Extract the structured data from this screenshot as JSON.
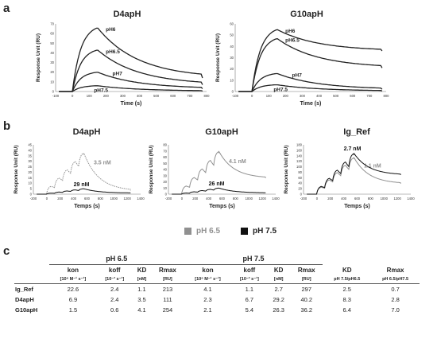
{
  "panel_labels": {
    "a": "a",
    "b": "b",
    "c": "c"
  },
  "legend": {
    "items": [
      {
        "label": "pH 6.5",
        "color": "#909090"
      },
      {
        "label": "pH 7.5",
        "color": "#111111"
      }
    ]
  },
  "chart_data": [
    {
      "id": "a1",
      "type": "line",
      "title": "D4apH",
      "xlabel": "Time (s)",
      "ylabel": "Response Unit (RU)",
      "xlim": [
        -100,
        800
      ],
      "ylim": [
        0,
        70
      ],
      "xticks": [
        -100,
        0,
        100,
        200,
        300,
        400,
        500,
        600,
        700,
        800
      ],
      "yticks": [
        0,
        10,
        20,
        30,
        40,
        50,
        60,
        70
      ],
      "series": [
        {
          "name": "pH6",
          "peak": 66,
          "end": 14
        },
        {
          "name": "pH6.5",
          "peak": 43,
          "end": 7
        },
        {
          "name": "pH7",
          "peak": 20,
          "end": 3
        },
        {
          "name": "pH7.5",
          "peak": 6,
          "end": 0.5
        }
      ]
    },
    {
      "id": "a2",
      "type": "line",
      "title": "G10apH",
      "xlabel": "Time (s)",
      "ylabel": "Response Unit (RU)",
      "xlim": [
        -100,
        800
      ],
      "ylim": [
        0,
        60
      ],
      "xticks": [
        -100,
        0,
        100,
        200,
        300,
        400,
        500,
        600,
        700,
        800
      ],
      "yticks": [
        0,
        10,
        20,
        30,
        40,
        50,
        60
      ],
      "series": [
        {
          "name": "pH6",
          "peak": 55,
          "end": 36
        },
        {
          "name": "pH6.5",
          "peak": 47,
          "end": 21
        },
        {
          "name": "pH7",
          "peak": 16,
          "end": 2
        },
        {
          "name": "pH7.5",
          "peak": 6,
          "end": 0.5
        }
      ]
    },
    {
      "id": "b1",
      "type": "line",
      "title": "D4apH",
      "xlabel": "Temps (s)",
      "ylabel": "Response Unit (RU)",
      "xlim": [
        -200,
        1400
      ],
      "ylim": [
        0,
        45
      ],
      "xticks": [
        -200,
        0,
        200,
        400,
        600,
        800,
        1000,
        1200,
        1400
      ],
      "yticks": [
        0,
        5,
        10,
        15,
        20,
        25,
        30,
        35,
        40,
        45
      ],
      "series": [
        {
          "name": "pH 6.5",
          "color": "#909090",
          "peak": 38,
          "end": 3,
          "label": "3.5 nM"
        },
        {
          "name": "pH 7.5",
          "color": "#111111",
          "peak": 5,
          "end": 1,
          "label": "29 nM"
        }
      ]
    },
    {
      "id": "b2",
      "type": "line",
      "title": "G10apH",
      "xlabel": "Temps (s)",
      "ylabel": "Response Unit (RU)",
      "xlim": [
        -200,
        1400
      ],
      "ylim": [
        0,
        80
      ],
      "xticks": [
        -200,
        0,
        200,
        400,
        600,
        800,
        1000,
        1200,
        1400
      ],
      "yticks": [
        0,
        10,
        20,
        30,
        40,
        50,
        60,
        70,
        80
      ],
      "series": [
        {
          "name": "pH 6.5",
          "color": "#909090",
          "peak": 70,
          "end": 26,
          "label": "4.1 nM"
        },
        {
          "name": "pH 7.5",
          "color": "#111111",
          "peak": 10,
          "end": 2,
          "label": "26 nM"
        }
      ]
    },
    {
      "id": "b3",
      "type": "line",
      "title": "Ig_Ref",
      "xlabel": "Temps (s)",
      "ylabel": "Response Unit (RU)",
      "xlim": [
        -200,
        1400
      ],
      "ylim": [
        0,
        180
      ],
      "xticks": [
        -200,
        0,
        200,
        400,
        600,
        800,
        1000,
        1200,
        1400
      ],
      "yticks": [
        0,
        20,
        40,
        60,
        80,
        100,
        120,
        140,
        160,
        180
      ],
      "series": [
        {
          "name": "pH 6.5",
          "color": "#909090",
          "peak": 135,
          "end": 38,
          "label": "1.1 nM"
        },
        {
          "name": "pH 7.5",
          "color": "#111111",
          "peak": 150,
          "end": 70,
          "label": "2.7 nM"
        }
      ]
    }
  ],
  "table": {
    "group_65": "pH 6.5",
    "group_75": "pH 7.5",
    "headers": [
      "kon",
      "koff",
      "KD",
      "Rmax",
      "kon",
      "koff",
      "KD",
      "Rmax",
      "KD",
      "Rmax"
    ],
    "units": [
      "[10⁶ M⁻¹ s⁻¹]",
      "[10⁻³ s⁻¹]",
      "[nM]",
      "[RU]",
      "[10⁶ M⁻¹ s⁻¹]",
      "[10⁻³ s⁻¹]",
      "[nM]",
      "[RU]",
      "pH 7.5/pH6.5",
      "pH 6.5/pH7.5"
    ],
    "rows": [
      {
        "name": "Ig_Ref",
        "values": [
          "22.6",
          "2.4",
          "1.1",
          "213",
          "4.1",
          "1.1",
          "2.7",
          "297",
          "2.5",
          "0.7"
        ]
      },
      {
        "name": "D4apH",
        "values": [
          "6.9",
          "2.4",
          "3.5",
          "111",
          "2.3",
          "6.7",
          "29.2",
          "40.2",
          "8.3",
          "2.8"
        ]
      },
      {
        "name": "G10apH",
        "values": [
          "1.5",
          "0.6",
          "4.1",
          "254",
          "2.1",
          "5.4",
          "26.3",
          "36.2",
          "6.4",
          "7.0"
        ]
      }
    ]
  }
}
